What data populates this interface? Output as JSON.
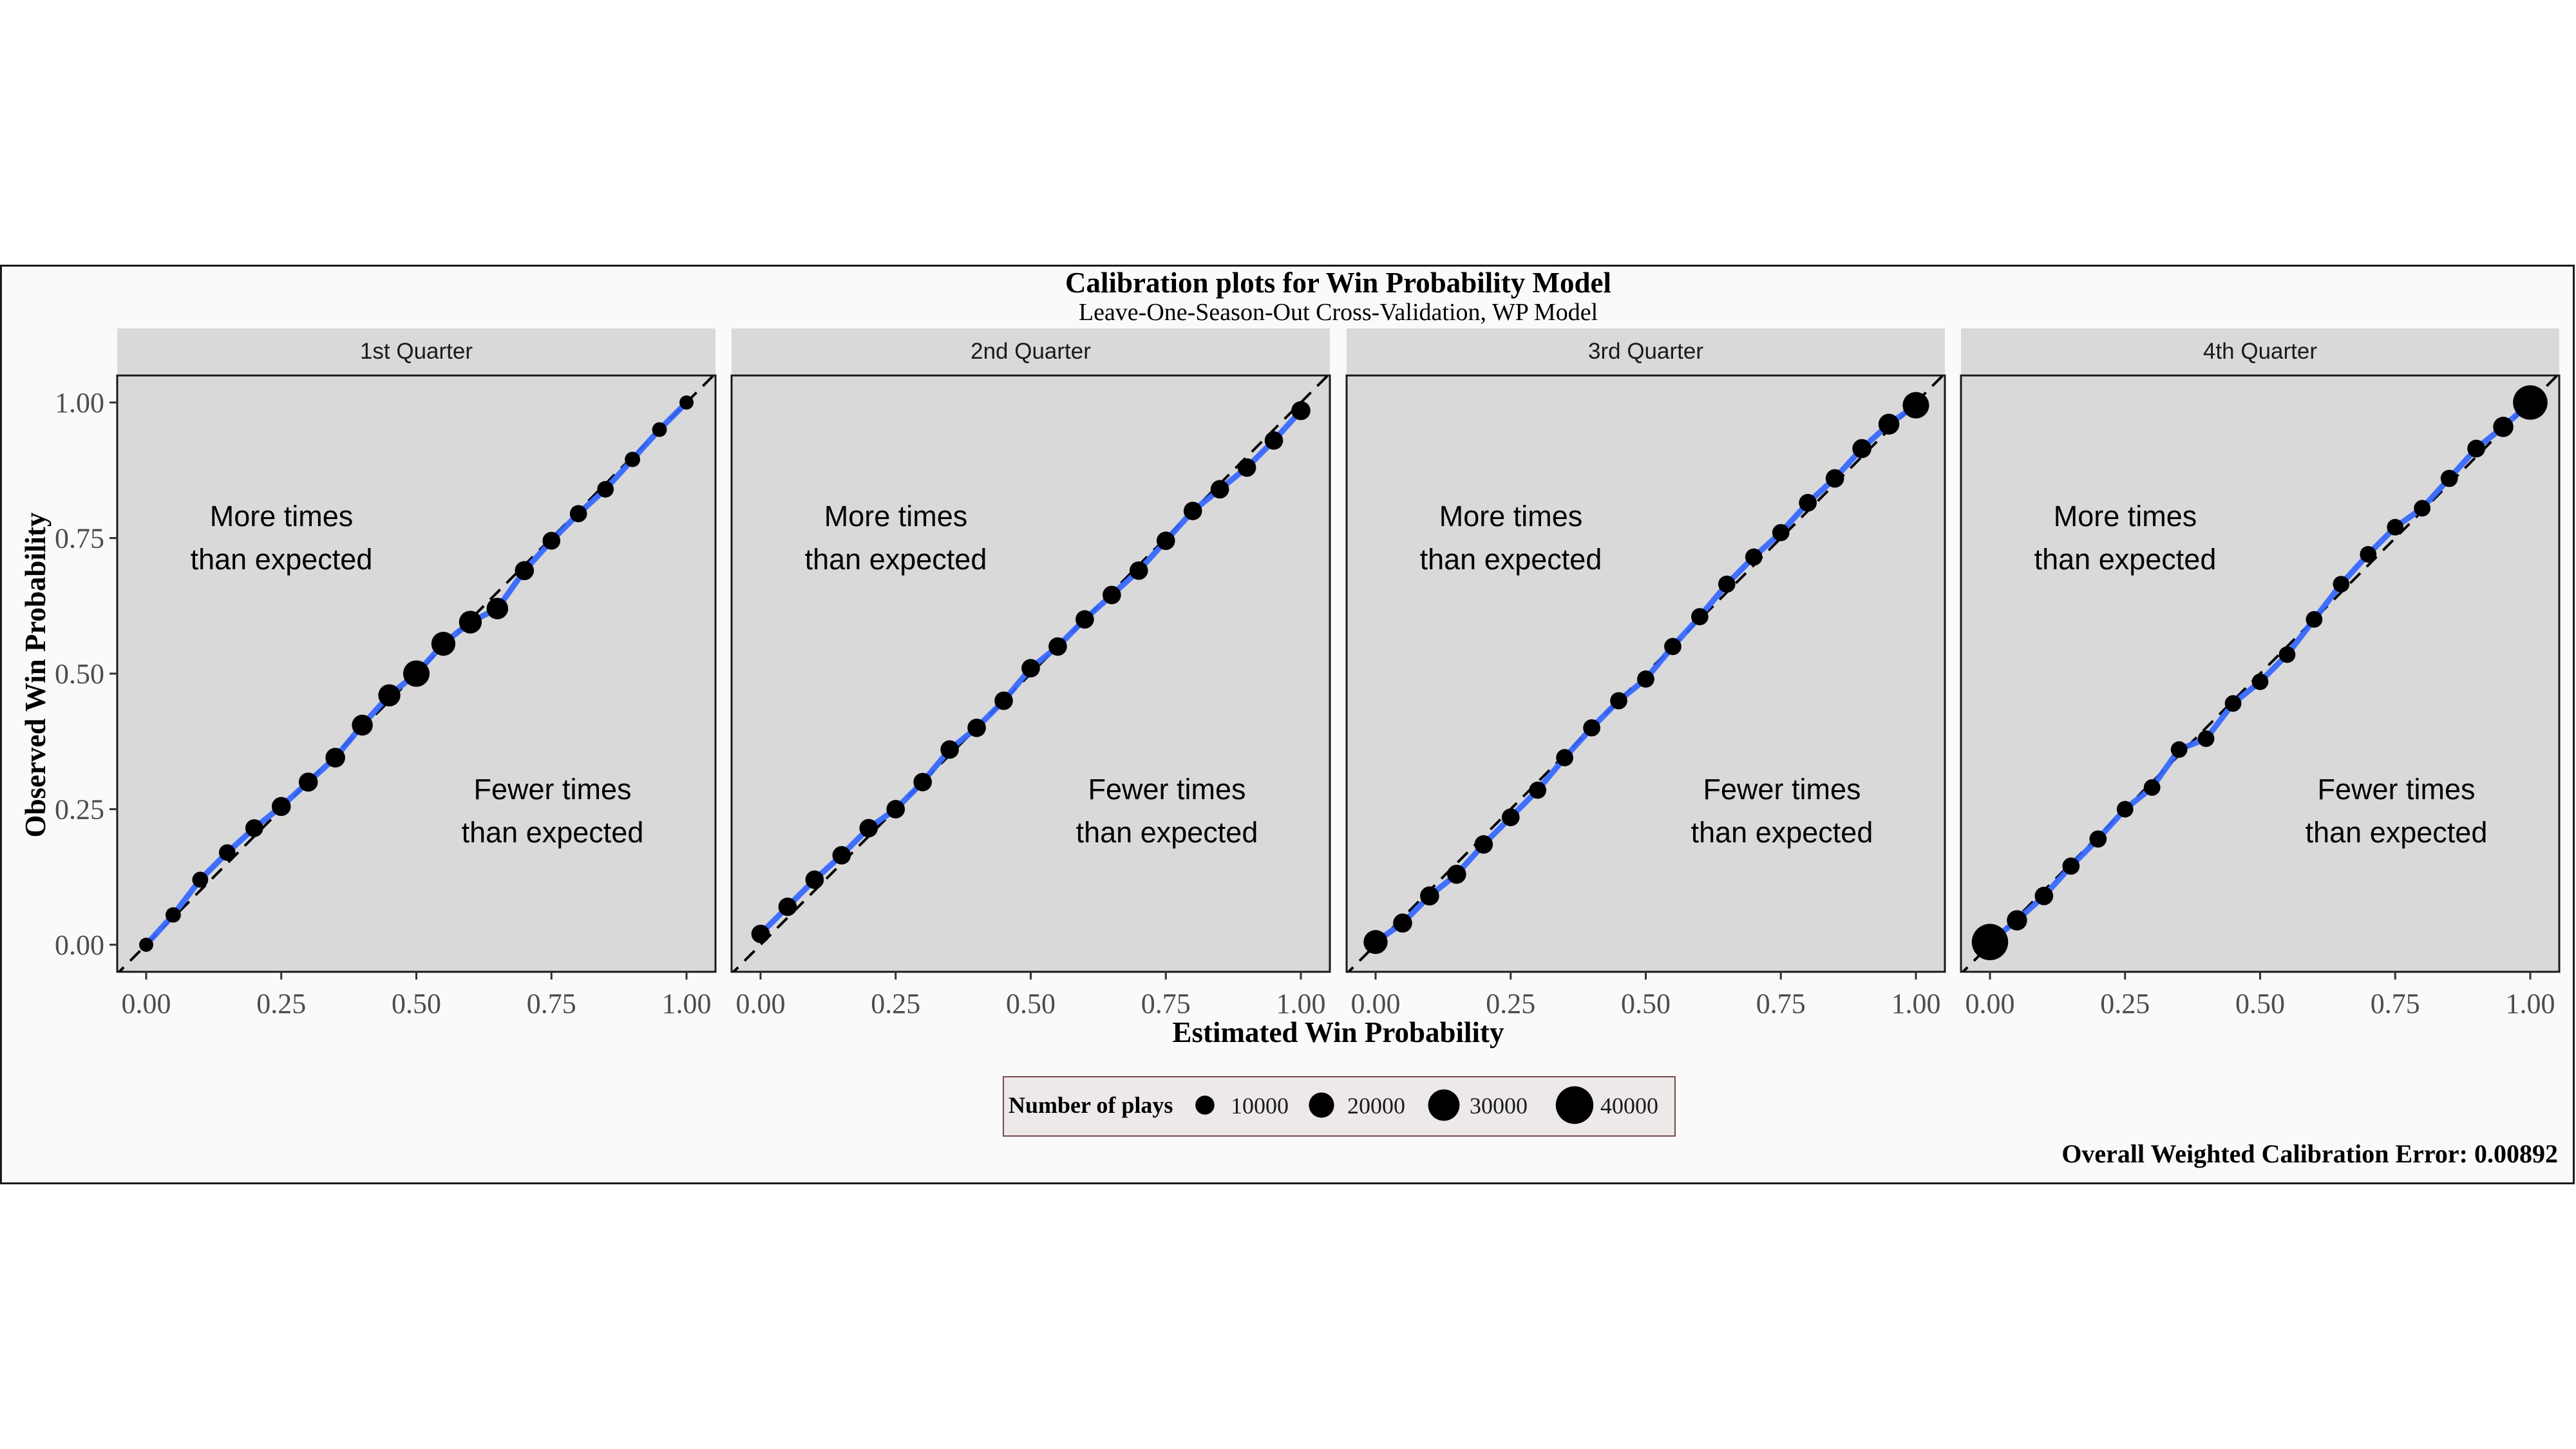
{
  "chart_data": {
    "type": "scatter",
    "title": "Calibration plots for Win Probability Model",
    "subtitle": "Leave-One-Season-Out Cross-Validation, WP Model",
    "xlabel": "Estimated Win Probability",
    "ylabel": "Observed Win Probability",
    "xlim": [
      0,
      1
    ],
    "ylim": [
      0,
      1
    ],
    "x_ticks": [
      "0.00",
      "0.25",
      "0.50",
      "0.75",
      "1.00"
    ],
    "y_ticks": [
      "0.00",
      "0.25",
      "0.50",
      "0.75",
      "1.00"
    ],
    "grid": false,
    "colors": {
      "panel": "#d9d9d9",
      "strip": "#d9d9d9",
      "fit_line": "#3366ff",
      "points": "#000000",
      "reference_line": "#000000"
    },
    "annotations": {
      "upper": [
        "More times",
        "than expected"
      ],
      "lower": [
        "Fewer times",
        "than expected"
      ]
    },
    "legend": {
      "title": "Number of plays",
      "position": "bottom",
      "sizes": [
        10000,
        20000,
        30000,
        40000
      ],
      "labels": [
        "10000",
        "20000",
        "30000",
        "40000"
      ]
    },
    "footer": "Overall Weighted Calibration Error: 0.00892",
    "panels": [
      {
        "label": "1st Quarter",
        "points": [
          {
            "x": 0.0,
            "y": 0.0,
            "n": 2000
          },
          {
            "x": 0.05,
            "y": 0.055,
            "n": 4000
          },
          {
            "x": 0.1,
            "y": 0.12,
            "n": 5000
          },
          {
            "x": 0.15,
            "y": 0.17,
            "n": 6000
          },
          {
            "x": 0.2,
            "y": 0.215,
            "n": 8000
          },
          {
            "x": 0.25,
            "y": 0.255,
            "n": 10000
          },
          {
            "x": 0.3,
            "y": 0.3,
            "n": 10000
          },
          {
            "x": 0.35,
            "y": 0.345,
            "n": 11000
          },
          {
            "x": 0.4,
            "y": 0.405,
            "n": 13000
          },
          {
            "x": 0.45,
            "y": 0.46,
            "n": 15000
          },
          {
            "x": 0.5,
            "y": 0.5,
            "n": 22000
          },
          {
            "x": 0.55,
            "y": 0.555,
            "n": 18000
          },
          {
            "x": 0.6,
            "y": 0.595,
            "n": 16000
          },
          {
            "x": 0.65,
            "y": 0.62,
            "n": 14000
          },
          {
            "x": 0.7,
            "y": 0.69,
            "n": 10000
          },
          {
            "x": 0.75,
            "y": 0.745,
            "n": 8000
          },
          {
            "x": 0.8,
            "y": 0.795,
            "n": 7000
          },
          {
            "x": 0.85,
            "y": 0.84,
            "n": 6000
          },
          {
            "x": 0.9,
            "y": 0.895,
            "n": 4000
          },
          {
            "x": 0.95,
            "y": 0.95,
            "n": 3000
          },
          {
            "x": 1.0,
            "y": 1.0,
            "n": 2000
          }
        ]
      },
      {
        "label": "2nd Quarter",
        "points": [
          {
            "x": 0.0,
            "y": 0.02,
            "n": 9000
          },
          {
            "x": 0.05,
            "y": 0.07,
            "n": 9000
          },
          {
            "x": 0.1,
            "y": 0.12,
            "n": 9000
          },
          {
            "x": 0.15,
            "y": 0.165,
            "n": 9000
          },
          {
            "x": 0.2,
            "y": 0.215,
            "n": 9000
          },
          {
            "x": 0.25,
            "y": 0.25,
            "n": 9000
          },
          {
            "x": 0.3,
            "y": 0.3,
            "n": 9000
          },
          {
            "x": 0.35,
            "y": 0.36,
            "n": 9000
          },
          {
            "x": 0.4,
            "y": 0.4,
            "n": 9000
          },
          {
            "x": 0.45,
            "y": 0.45,
            "n": 9000
          },
          {
            "x": 0.5,
            "y": 0.51,
            "n": 9000
          },
          {
            "x": 0.55,
            "y": 0.55,
            "n": 9000
          },
          {
            "x": 0.6,
            "y": 0.6,
            "n": 9000
          },
          {
            "x": 0.65,
            "y": 0.645,
            "n": 9000
          },
          {
            "x": 0.7,
            "y": 0.69,
            "n": 9000
          },
          {
            "x": 0.75,
            "y": 0.745,
            "n": 9000
          },
          {
            "x": 0.8,
            "y": 0.8,
            "n": 9000
          },
          {
            "x": 0.85,
            "y": 0.84,
            "n": 9000
          },
          {
            "x": 0.9,
            "y": 0.88,
            "n": 9000
          },
          {
            "x": 0.95,
            "y": 0.93,
            "n": 9000
          },
          {
            "x": 1.0,
            "y": 0.985,
            "n": 10000
          }
        ]
      },
      {
        "label": "3rd Quarter",
        "points": [
          {
            "x": 0.0,
            "y": 0.005,
            "n": 18000
          },
          {
            "x": 0.05,
            "y": 0.04,
            "n": 10000
          },
          {
            "x": 0.1,
            "y": 0.09,
            "n": 10000
          },
          {
            "x": 0.15,
            "y": 0.13,
            "n": 10000
          },
          {
            "x": 0.2,
            "y": 0.185,
            "n": 9000
          },
          {
            "x": 0.25,
            "y": 0.235,
            "n": 8000
          },
          {
            "x": 0.3,
            "y": 0.285,
            "n": 7000
          },
          {
            "x": 0.35,
            "y": 0.345,
            "n": 7000
          },
          {
            "x": 0.4,
            "y": 0.4,
            "n": 7000
          },
          {
            "x": 0.45,
            "y": 0.45,
            "n": 7000
          },
          {
            "x": 0.5,
            "y": 0.49,
            "n": 7000
          },
          {
            "x": 0.55,
            "y": 0.55,
            "n": 7000
          },
          {
            "x": 0.6,
            "y": 0.605,
            "n": 7000
          },
          {
            "x": 0.65,
            "y": 0.665,
            "n": 7000
          },
          {
            "x": 0.7,
            "y": 0.715,
            "n": 7000
          },
          {
            "x": 0.75,
            "y": 0.76,
            "n": 7000
          },
          {
            "x": 0.8,
            "y": 0.815,
            "n": 8000
          },
          {
            "x": 0.85,
            "y": 0.86,
            "n": 9000
          },
          {
            "x": 0.9,
            "y": 0.915,
            "n": 10000
          },
          {
            "x": 0.95,
            "y": 0.96,
            "n": 13000
          },
          {
            "x": 1.0,
            "y": 0.995,
            "n": 22000
          }
        ]
      },
      {
        "label": "4th Quarter",
        "points": [
          {
            "x": 0.0,
            "y": 0.005,
            "n": 38000
          },
          {
            "x": 0.05,
            "y": 0.045,
            "n": 12000
          },
          {
            "x": 0.1,
            "y": 0.09,
            "n": 9000
          },
          {
            "x": 0.15,
            "y": 0.145,
            "n": 7000
          },
          {
            "x": 0.2,
            "y": 0.195,
            "n": 7000
          },
          {
            "x": 0.25,
            "y": 0.25,
            "n": 6000
          },
          {
            "x": 0.3,
            "y": 0.29,
            "n": 6000
          },
          {
            "x": 0.35,
            "y": 0.36,
            "n": 6000
          },
          {
            "x": 0.4,
            "y": 0.38,
            "n": 6000
          },
          {
            "x": 0.45,
            "y": 0.445,
            "n": 6000
          },
          {
            "x": 0.5,
            "y": 0.485,
            "n": 6000
          },
          {
            "x": 0.55,
            "y": 0.535,
            "n": 6000
          },
          {
            "x": 0.6,
            "y": 0.6,
            "n": 6000
          },
          {
            "x": 0.65,
            "y": 0.665,
            "n": 6000
          },
          {
            "x": 0.7,
            "y": 0.72,
            "n": 6000
          },
          {
            "x": 0.75,
            "y": 0.77,
            "n": 6000
          },
          {
            "x": 0.8,
            "y": 0.805,
            "n": 6000
          },
          {
            "x": 0.85,
            "y": 0.86,
            "n": 7000
          },
          {
            "x": 0.9,
            "y": 0.915,
            "n": 8000
          },
          {
            "x": 0.95,
            "y": 0.955,
            "n": 12000
          },
          {
            "x": 1.0,
            "y": 1.0,
            "n": 35000
          }
        ]
      }
    ]
  }
}
